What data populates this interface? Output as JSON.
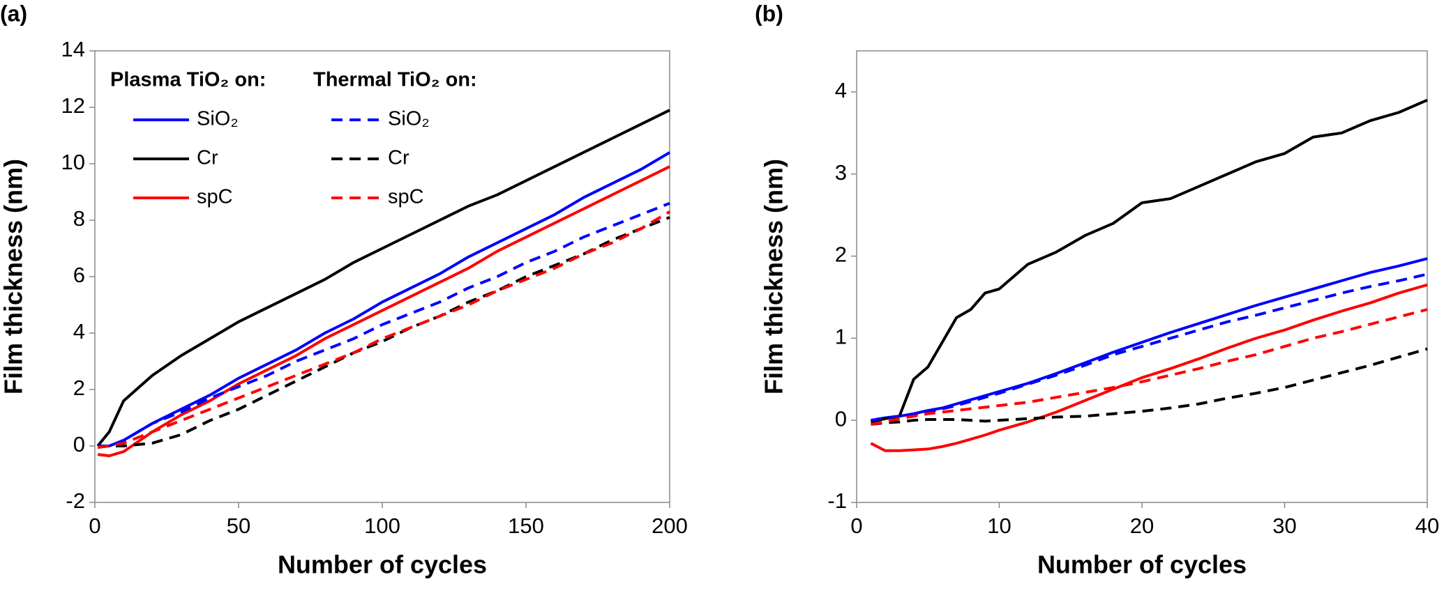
{
  "chart_data": [
    {
      "type": "line",
      "label": "(a)",
      "xlabel": "Number of cycles",
      "ylabel": "Film thickness (nm)",
      "xlim": [
        0,
        200
      ],
      "ylim": [
        -2,
        14
      ],
      "xticks": [
        0,
        50,
        100,
        150,
        200
      ],
      "yticks": [
        -2,
        0,
        2,
        4,
        6,
        8,
        10,
        12,
        14
      ],
      "legend_headers": [
        "Plasma TiO₂ on:",
        "Thermal TiO₂ on:"
      ],
      "x": [
        1,
        5,
        10,
        20,
        30,
        40,
        50,
        60,
        70,
        80,
        90,
        100,
        110,
        120,
        130,
        140,
        150,
        160,
        170,
        180,
        190,
        200
      ],
      "series": [
        {
          "name": "SiO₂",
          "color": "#0000ff",
          "style": "solid",
          "values": [
            0,
            0,
            0.2,
            0.8,
            1.3,
            1.8,
            2.4,
            2.9,
            3.4,
            4.0,
            4.5,
            5.1,
            5.6,
            6.1,
            6.7,
            7.2,
            7.7,
            8.2,
            8.8,
            9.3,
            9.8,
            10.4
          ]
        },
        {
          "name": "Cr",
          "color": "#000000",
          "style": "solid",
          "values": [
            0,
            0.5,
            1.6,
            2.5,
            3.2,
            3.8,
            4.4,
            4.9,
            5.4,
            5.9,
            6.5,
            7.0,
            7.5,
            8.0,
            8.5,
            8.9,
            9.4,
            9.9,
            10.4,
            10.9,
            11.4,
            11.9
          ]
        },
        {
          "name": "spC",
          "color": "#ff0000",
          "style": "solid",
          "values": [
            -0.3,
            -0.35,
            -0.2,
            0.5,
            1.1,
            1.6,
            2.2,
            2.7,
            3.2,
            3.8,
            4.3,
            4.8,
            5.3,
            5.8,
            6.3,
            6.9,
            7.4,
            7.9,
            8.4,
            8.9,
            9.4,
            9.9
          ]
        },
        {
          "name": "SiO₂",
          "color": "#0000ff",
          "style": "dashed",
          "values": [
            0,
            0,
            0.2,
            0.8,
            1.2,
            1.7,
            2.1,
            2.5,
            3.0,
            3.4,
            3.8,
            4.3,
            4.7,
            5.1,
            5.6,
            6.0,
            6.5,
            6.9,
            7.4,
            7.8,
            8.2,
            8.6
          ]
        },
        {
          "name": "Cr",
          "color": "#000000",
          "style": "dashed",
          "values": [
            -0.05,
            0,
            0,
            0.1,
            0.4,
            0.9,
            1.3,
            1.8,
            2.3,
            2.8,
            3.3,
            3.7,
            4.2,
            4.6,
            5.1,
            5.5,
            6.0,
            6.4,
            6.8,
            7.3,
            7.7,
            8.1
          ]
        },
        {
          "name": "spC",
          "color": "#ff0000",
          "style": "dashed",
          "values": [
            -0.05,
            0,
            0.1,
            0.5,
            0.9,
            1.3,
            1.7,
            2.1,
            2.5,
            2.9,
            3.3,
            3.8,
            4.2,
            4.6,
            5.0,
            5.5,
            5.9,
            6.3,
            6.8,
            7.2,
            7.7,
            8.3
          ]
        }
      ]
    },
    {
      "type": "line",
      "label": "(b)",
      "xlabel": "Number of cycles",
      "ylabel": "Film thickness (nm)",
      "xlim": [
        0,
        40
      ],
      "ylim": [
        -1,
        4.5
      ],
      "xticks": [
        0,
        10,
        20,
        30,
        40
      ],
      "yticks": [
        -1,
        0,
        1,
        2,
        3,
        4
      ],
      "x": [
        1,
        2,
        3,
        4,
        5,
        6,
        7,
        8,
        9,
        10,
        12,
        14,
        16,
        18,
        20,
        22,
        24,
        26,
        28,
        30,
        32,
        34,
        36,
        38,
        40
      ],
      "series": [
        {
          "color": "#0000ff",
          "style": "solid",
          "values": [
            0,
            0.03,
            0.05,
            0.08,
            0.12,
            0.15,
            0.2,
            0.25,
            0.3,
            0.35,
            0.45,
            0.57,
            0.7,
            0.83,
            0.95,
            1.07,
            1.18,
            1.29,
            1.4,
            1.5,
            1.6,
            1.7,
            1.8,
            1.88,
            1.97
          ]
        },
        {
          "color": "#000000",
          "style": "solid",
          "values": [
            -0.02,
            0.02,
            0.05,
            0.5,
            0.65,
            0.95,
            1.25,
            1.35,
            1.55,
            1.6,
            1.9,
            2.05,
            2.25,
            2.4,
            2.65,
            2.7,
            2.85,
            3.0,
            3.15,
            3.25,
            3.45,
            3.5,
            3.65,
            3.75,
            3.9
          ]
        },
        {
          "color": "#ff0000",
          "style": "solid",
          "values": [
            -0.28,
            -0.37,
            -0.37,
            -0.36,
            -0.35,
            -0.32,
            -0.28,
            -0.23,
            -0.18,
            -0.12,
            -0.02,
            0.1,
            0.24,
            0.38,
            0.52,
            0.63,
            0.75,
            0.88,
            1.0,
            1.1,
            1.22,
            1.33,
            1.43,
            1.55,
            1.65
          ]
        },
        {
          "color": "#0000ff",
          "style": "dashed",
          "values": [
            0,
            0.03,
            0.05,
            0.07,
            0.1,
            0.14,
            0.18,
            0.23,
            0.28,
            0.33,
            0.44,
            0.55,
            0.67,
            0.8,
            0.9,
            1.0,
            1.1,
            1.2,
            1.28,
            1.37,
            1.46,
            1.55,
            1.63,
            1.7,
            1.78
          ]
        },
        {
          "color": "#000000",
          "style": "dashed",
          "values": [
            -0.05,
            -0.03,
            -0.02,
            0,
            0.01,
            0.01,
            0.01,
            0,
            -0.01,
            0,
            0.02,
            0.04,
            0.05,
            0.08,
            0.11,
            0.15,
            0.2,
            0.27,
            0.33,
            0.4,
            0.49,
            0.58,
            0.67,
            0.77,
            0.87
          ]
        },
        {
          "color": "#ff0000",
          "style": "dashed",
          "values": [
            -0.05,
            -0.02,
            0.02,
            0.05,
            0.08,
            0.1,
            0.12,
            0.14,
            0.16,
            0.18,
            0.22,
            0.28,
            0.34,
            0.4,
            0.47,
            0.55,
            0.63,
            0.72,
            0.8,
            0.9,
            1.0,
            1.08,
            1.17,
            1.26,
            1.35
          ]
        }
      ]
    }
  ]
}
